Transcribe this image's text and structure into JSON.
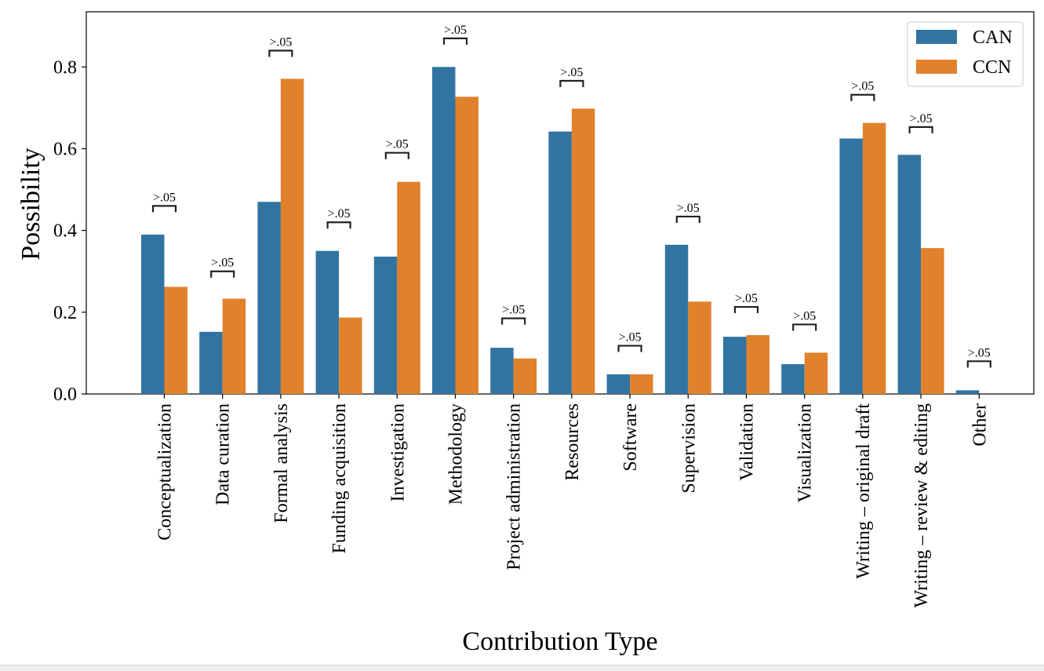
{
  "chart_data": {
    "type": "bar",
    "title": "",
    "xlabel": "Contribution Type",
    "ylabel": "Possibility",
    "ylim": [
      0,
      0.935
    ],
    "yticks": [
      0.0,
      0.2,
      0.4,
      0.6,
      0.8
    ],
    "ytick_labels": [
      "0.0",
      "0.2",
      "0.4",
      "0.6",
      "0.8"
    ],
    "grid": false,
    "legend_position": "top-right",
    "categories": [
      "Conceptualization",
      "Data curation",
      "Formal analysis",
      "Funding acquisition",
      "Investigation",
      "Methodology",
      "Project administration",
      "Resources",
      "Software",
      "Supervision",
      "Validation",
      "Visualization",
      "Writing – original draft",
      "Writing – review & editing",
      "Other"
    ],
    "series": [
      {
        "name": "CAN",
        "color": "#3274a1",
        "values": [
          0.39,
          0.152,
          0.47,
          0.35,
          0.336,
          0.8,
          0.113,
          0.642,
          0.048,
          0.365,
          0.14,
          0.073,
          0.625,
          0.585,
          0.009
        ]
      },
      {
        "name": "CCN",
        "color": "#e1812c",
        "values": [
          0.262,
          0.233,
          0.771,
          0.187,
          0.519,
          0.727,
          0.087,
          0.698,
          0.048,
          0.226,
          0.144,
          0.101,
          0.663,
          0.357,
          0.0
        ]
      }
    ],
    "annotations": {
      "label": ">.05",
      "bracket_levels": [
        0.46,
        0.3,
        0.84,
        0.42,
        0.59,
        0.87,
        0.185,
        0.766,
        0.118,
        0.434,
        0.213,
        0.17,
        0.732,
        0.653,
        0.08
      ]
    }
  }
}
